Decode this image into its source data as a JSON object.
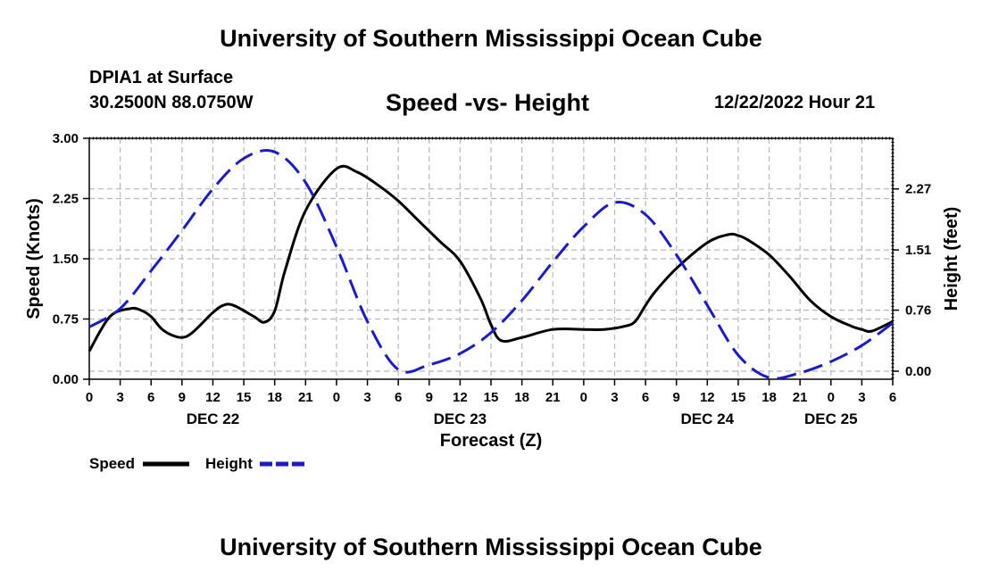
{
  "page": {
    "title": "University of Southern Mississippi Ocean Cube",
    "station": "DPIA1 at Surface",
    "coords": "30.2500N  88.0750W",
    "subtitle": "Speed -vs- Height",
    "datetime": "12/22/2022 Hour 21",
    "footer_title": "University of Southern Mississippi Ocean Cube"
  },
  "chart_data": {
    "type": "line",
    "title": "Speed -vs- Height",
    "xlabel": "Forecast (Z)",
    "ylabel_left": "Speed (Knots)",
    "ylabel_right": "Height (feet)",
    "x_range": [
      0,
      78
    ],
    "x_tick_labels": [
      "0",
      "3",
      "6",
      "9",
      "12",
      "15",
      "18",
      "21",
      "0",
      "3",
      "6",
      "9",
      "12",
      "15",
      "18",
      "21",
      "0",
      "3",
      "6",
      "9",
      "12",
      "15",
      "18",
      "21",
      "0",
      "3",
      "6"
    ],
    "date_labels": [
      {
        "label": "DEC 22",
        "x": 12
      },
      {
        "label": "DEC 23",
        "x": 36
      },
      {
        "label": "DEC 24",
        "x": 60
      },
      {
        "label": "DEC 25",
        "x": 72
      }
    ],
    "y_left": {
      "min": 0,
      "max": 3,
      "ticks": [
        "0.00",
        "0.75",
        "1.50",
        "2.25",
        "3.00"
      ]
    },
    "y_right": {
      "min": -0.1,
      "max": 2.9,
      "ticks": [
        "0.00",
        "0.76",
        "1.51",
        "2.27"
      ]
    },
    "grid": true,
    "legend_position": "bottom-left",
    "series": [
      {
        "name": "Speed",
        "axis": "left",
        "color": "#000000",
        "style": "solid",
        "x": [
          0,
          2,
          4,
          5,
          6,
          7,
          8,
          9,
          10,
          12,
          13,
          14,
          16,
          17,
          18,
          19,
          21,
          24,
          26,
          28,
          30,
          32,
          34,
          36,
          38,
          39,
          40,
          42,
          45,
          48,
          50,
          52,
          53,
          54,
          55,
          57,
          60,
          62,
          63,
          64,
          66,
          68,
          70,
          72,
          74,
          75,
          76,
          78
        ],
        "values": [
          0.35,
          0.78,
          0.88,
          0.86,
          0.78,
          0.63,
          0.55,
          0.52,
          0.58,
          0.83,
          0.92,
          0.92,
          0.78,
          0.71,
          0.85,
          1.35,
          2.1,
          2.62,
          2.58,
          2.42,
          2.22,
          1.97,
          1.72,
          1.47,
          1.0,
          0.68,
          0.48,
          0.52,
          0.62,
          0.62,
          0.62,
          0.66,
          0.72,
          0.92,
          1.1,
          1.38,
          1.7,
          1.8,
          1.79,
          1.73,
          1.55,
          1.28,
          0.98,
          0.78,
          0.66,
          0.62,
          0.6,
          0.72
        ]
      },
      {
        "name": "Height",
        "axis": "right",
        "color": "#1a1ad6",
        "style": "dashed",
        "x": [
          0,
          3,
          6,
          9,
          12,
          15,
          18,
          21,
          24,
          27,
          30,
          33,
          36,
          39,
          42,
          45,
          48,
          51,
          54,
          57,
          60,
          63,
          66,
          69,
          72,
          75,
          78
        ],
        "values": [
          0.55,
          0.78,
          1.25,
          1.75,
          2.27,
          2.65,
          2.73,
          2.35,
          1.55,
          0.62,
          0.02,
          0.08,
          0.22,
          0.48,
          0.88,
          1.36,
          1.8,
          2.1,
          1.95,
          1.45,
          0.82,
          0.2,
          -0.08,
          -0.02,
          0.12,
          0.32,
          0.6
        ]
      }
    ]
  }
}
